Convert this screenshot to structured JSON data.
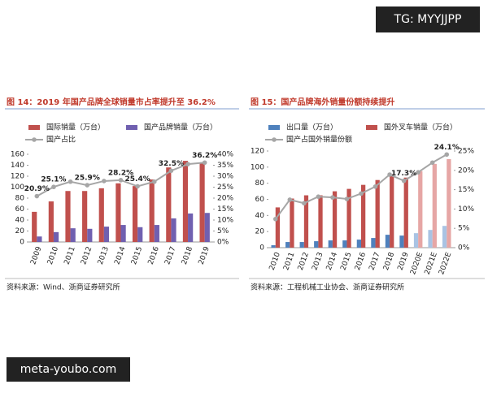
{
  "watermark_top": "TG: MYYJJPP",
  "watermark_bottom": "meta-youbo.com",
  "chart_data": [
    {
      "type": "bar",
      "title": "图 14：2019 年国产品牌全球销量市占率提升至 36.2%",
      "source": "资料来源：Wind、浙商证券研究所",
      "categories": [
        "2009",
        "2010",
        "2011",
        "2012",
        "2013",
        "2014",
        "2015",
        "2016",
        "2017",
        "2018",
        "2019"
      ],
      "ylim": [
        0,
        160
      ],
      "yticks": [
        0,
        20,
        40,
        60,
        80,
        100,
        120,
        140,
        160
      ],
      "y2lim": [
        0,
        40
      ],
      "y2ticks": [
        {
          "value": 0,
          "label": "0%"
        },
        {
          "value": 5,
          "label": "5%"
        },
        {
          "value": 10,
          "label": "10%"
        },
        {
          "value": 15,
          "label": "15%"
        },
        {
          "value": 20,
          "label": "20%"
        },
        {
          "value": 25,
          "label": "25%"
        },
        {
          "value": 30,
          "label": "30%"
        },
        {
          "value": 35,
          "label": "35%"
        },
        {
          "value": 40,
          "label": "40%"
        }
      ],
      "series": [
        {
          "name": "国际销量（万台）",
          "type": "bar",
          "color": "#c0504d",
          "values": [
            55,
            74,
            93,
            93,
            98,
            107,
            102,
            114,
            136,
            148,
            145
          ]
        },
        {
          "name": "国产品牌销量（万台）",
          "type": "bar",
          "color": "#7060b0",
          "values": [
            10,
            18,
            25,
            24,
            28,
            31,
            27,
            31,
            43,
            52,
            53
          ]
        },
        {
          "name": "国产占比",
          "type": "line",
          "axis": "y2",
          "color": "#a6a6a6",
          "values": [
            20.9,
            25.1,
            27.5,
            25.9,
            27.8,
            28.2,
            25.4,
            27.5,
            32.5,
            35.5,
            36.2
          ],
          "value_labels": [
            "20.9%",
            "25.1%",
            null,
            "25.9%",
            null,
            "28.2%",
            "25.4%",
            null,
            "32.5%",
            null,
            "36.2%"
          ]
        }
      ]
    },
    {
      "type": "bar",
      "title": "图 15：国产品牌海外销量份额持续提升",
      "source": "资料来源：工程机械工业协会、浙商证券研究所",
      "categories": [
        "2010",
        "2011",
        "2012",
        "2013",
        "2014",
        "2015",
        "2016",
        "2017",
        "2018",
        "2019",
        "2020E",
        "2021E",
        "2022E"
      ],
      "ylim": [
        0,
        120
      ],
      "yticks": [
        0,
        20,
        40,
        60,
        80,
        100,
        120
      ],
      "y2lim": [
        0,
        25
      ],
      "y2ticks": [
        {
          "value": 0,
          "label": "0%"
        },
        {
          "value": 5,
          "label": "5%"
        },
        {
          "value": 10,
          "label": "10%"
        },
        {
          "value": 15,
          "label": "15%"
        },
        {
          "value": 20,
          "label": "20%"
        },
        {
          "value": 25,
          "label": "25%"
        }
      ],
      "series": [
        {
          "name": "出口量（万台）",
          "type": "bar",
          "color": "#4f81bd",
          "colors": [
            "#4f81bd",
            "#4f81bd",
            "#4f81bd",
            "#4f81bd",
            "#4f81bd",
            "#4f81bd",
            "#4f81bd",
            "#4f81bd",
            "#4f81bd",
            "#4f81bd",
            "#a9c3e3",
            "#a9c3e3",
            "#a9c3e3"
          ],
          "values": [
            3,
            7,
            7,
            8,
            9,
            9,
            10,
            12,
            16,
            15,
            18,
            22,
            27
          ]
        },
        {
          "name": "国外叉车销量（万台）",
          "type": "bar",
          "color": "#c0504d",
          "colors": [
            "#c0504d",
            "#c0504d",
            "#c0504d",
            "#c0504d",
            "#c0504d",
            "#c0504d",
            "#c0504d",
            "#c0504d",
            "#c0504d",
            "#c0504d",
            "#e6a6a5",
            "#e6a6a5",
            "#e6a6a5"
          ],
          "values": [
            50,
            61,
            65,
            65,
            70,
            73,
            78,
            84,
            91,
            87,
            95,
            104,
            110
          ]
        },
        {
          "name": "国产占国外销量份额",
          "type": "line",
          "axis": "y2",
          "color": "#a6a6a6",
          "values": [
            7.4,
            12.4,
            11.5,
            13.2,
            13,
            12.6,
            14,
            15.8,
            18.9,
            17.3,
            19.5,
            22,
            24.1
          ],
          "value_labels": [
            null,
            null,
            null,
            null,
            null,
            null,
            null,
            null,
            null,
            "17.3%",
            null,
            null,
            "24.1%"
          ]
        }
      ]
    }
  ]
}
